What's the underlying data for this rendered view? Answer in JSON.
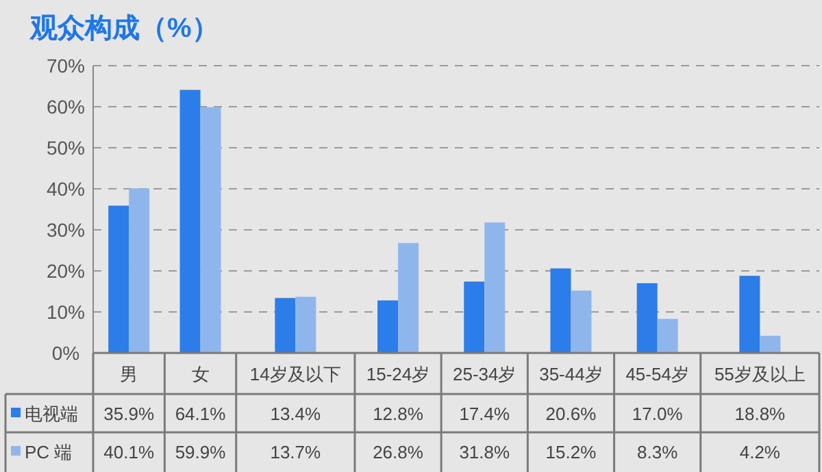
{
  "chart_data": {
    "type": "bar",
    "title": "观众构成（%）",
    "categories": [
      "男",
      "女",
      "14岁及以下",
      "15-24岁",
      "25-34岁",
      "35-44岁",
      "45-54岁",
      "55岁及以上"
    ],
    "series": [
      {
        "name": "电视端",
        "color": "#2b7de9",
        "values": [
          35.9,
          64.1,
          13.4,
          12.8,
          17.4,
          20.6,
          17.0,
          18.8
        ],
        "value_labels": [
          "35.9%",
          "64.1%",
          "13.4%",
          "12.8%",
          "17.4%",
          "20.6%",
          "17.0%",
          "18.8%"
        ]
      },
      {
        "name": "PC 端",
        "color": "#8fb6ec",
        "values": [
          40.1,
          59.9,
          13.7,
          26.8,
          31.8,
          15.2,
          8.3,
          4.2
        ],
        "value_labels": [
          "40.1%",
          "59.9%",
          "13.7%",
          "26.8%",
          "31.8%",
          "15.2%",
          "8.3%",
          "4.2%"
        ]
      }
    ],
    "ylim": [
      0,
      70
    ],
    "yticks": [
      {
        "value": 0,
        "label": "0%"
      },
      {
        "value": 10,
        "label": "10%"
      },
      {
        "value": 20,
        "label": "20%"
      },
      {
        "value": 30,
        "label": "30%"
      },
      {
        "value": 40,
        "label": "40%"
      },
      {
        "value": 50,
        "label": "50%"
      },
      {
        "value": 60,
        "label": "60%"
      },
      {
        "value": 70,
        "label": "70%"
      }
    ],
    "grid": "y",
    "legend": "bottom left"
  }
}
